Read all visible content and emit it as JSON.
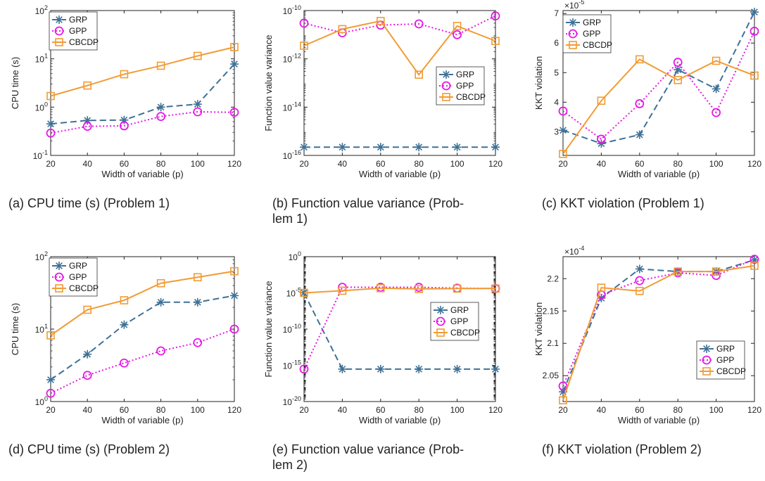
{
  "figure": {
    "colors": {
      "GRP": "#3f7196",
      "GPP": "#e619e6",
      "CBCDP": "#f29b33"
    },
    "markers": {
      "GRP": "asterisk",
      "GPP": "circle",
      "CBCDP": "square"
    }
  },
  "chart_data": [
    {
      "id": "a",
      "type": "line",
      "caption_lines": [
        "(a)  CPU time (s) (Problem 1)"
      ],
      "xlabel": "Width of variable (p)",
      "ylabel": "CPU time (s)",
      "x": [
        20,
        40,
        60,
        80,
        100,
        120
      ],
      "xlim": [
        20,
        120
      ],
      "yscale": "log",
      "ylim": [
        0.1,
        100
      ],
      "yticks": [
        0.1,
        1,
        10,
        100
      ],
      "ytick_labels": [
        {
          "base": "10",
          "exp": "-1"
        },
        {
          "base": "10",
          "exp": "0"
        },
        {
          "base": "10",
          "exp": "1"
        },
        {
          "base": "10",
          "exp": "2"
        }
      ],
      "legend": "top-left",
      "series": [
        {
          "name": "GRP",
          "values": [
            0.45,
            0.53,
            0.54,
            1.0,
            1.15,
            7.8
          ]
        },
        {
          "name": "GPP",
          "values": [
            0.29,
            0.4,
            0.41,
            0.64,
            0.8,
            0.78
          ]
        },
        {
          "name": "CBCDP",
          "values": [
            1.7,
            2.8,
            4.8,
            7.2,
            11.5,
            17.5
          ]
        }
      ]
    },
    {
      "id": "b",
      "type": "line",
      "caption_lines": [
        "(b)  Function value variance (Prob-",
        "lem 1)"
      ],
      "xlabel": "Width of variable (p)",
      "ylabel": "Function value variance",
      "x": [
        20,
        40,
        60,
        80,
        100,
        120
      ],
      "xlim": [
        20,
        120
      ],
      "yscale": "log",
      "ylim": [
        1e-16,
        1e-10
      ],
      "yticks": [
        1e-16,
        1e-14,
        1e-12,
        1e-10
      ],
      "ytick_labels": [
        {
          "base": "10",
          "exp": "-16"
        },
        {
          "base": "10",
          "exp": "-14"
        },
        {
          "base": "10",
          "exp": "-12"
        },
        {
          "base": "10",
          "exp": "-10"
        }
      ],
      "legend": "center-right",
      "series": [
        {
          "name": "GRP",
          "values": [
            2.2e-16,
            2.2e-16,
            2.2e-16,
            2.2e-16,
            2.2e-16,
            2.2e-16
          ]
        },
        {
          "name": "GPP",
          "values": [
            3e-11,
            1.2e-11,
            2.5e-11,
            2.8e-11,
            1e-11,
            6e-11
          ]
        },
        {
          "name": "CBCDP",
          "values": [
            3.5e-12,
            1.7e-11,
            3.7e-11,
            2.2e-13,
            2.3e-11,
            5.5e-12
          ]
        }
      ]
    },
    {
      "id": "c",
      "type": "line",
      "caption_lines": [
        "(c)  KKT violation (Problem 1)"
      ],
      "xlabel": "Width of variable (p)",
      "ylabel": "KKT violation",
      "x": [
        20,
        40,
        60,
        80,
        100,
        120
      ],
      "xlim": [
        20,
        120
      ],
      "yscale": "linear",
      "ylim": [
        2.2,
        7.1
      ],
      "yticks": [
        3,
        4,
        5,
        6,
        7
      ],
      "ytick_labels": [
        "3",
        "4",
        "5",
        "6",
        "7"
      ],
      "scale_note": {
        "base": "×10",
        "exp": "-5"
      },
      "legend": "top-left",
      "series": [
        {
          "name": "GRP",
          "values": [
            3.05,
            2.6,
            2.9,
            5.1,
            4.45,
            7.05
          ]
        },
        {
          "name": "GPP",
          "values": [
            3.7,
            2.75,
            3.95,
            5.35,
            3.65,
            6.4
          ]
        },
        {
          "name": "CBCDP",
          "values": [
            2.25,
            4.05,
            5.45,
            4.75,
            5.4,
            4.9
          ]
        }
      ]
    },
    {
      "id": "d",
      "type": "line",
      "caption_lines": [
        "(d)  CPU time (s) (Problem 2)"
      ],
      "xlabel": "Width of variable (p)",
      "ylabel": "CPU time (s)",
      "x": [
        20,
        40,
        60,
        80,
        100,
        120
      ],
      "xlim": [
        20,
        120
      ],
      "yscale": "log",
      "ylim": [
        1,
        100
      ],
      "yticks": [
        1,
        10,
        100
      ],
      "ytick_labels": [
        {
          "base": "10",
          "exp": "0"
        },
        {
          "base": "10",
          "exp": "1"
        },
        {
          "base": "10",
          "exp": "2"
        }
      ],
      "legend": "top-left",
      "series": [
        {
          "name": "GRP",
          "values": [
            2.0,
            4.5,
            11.5,
            23.5,
            23.5,
            29
          ]
        },
        {
          "name": "GPP",
          "values": [
            1.3,
            2.3,
            3.4,
            5.0,
            6.5,
            10
          ]
        },
        {
          "name": "CBCDP",
          "values": [
            8.2,
            18.5,
            25,
            43,
            52,
            63
          ]
        }
      ]
    },
    {
      "id": "e",
      "type": "line",
      "caption_lines": [
        "(e)  Function value variance (Prob-",
        "lem 2)"
      ],
      "xlabel": "Width of variable (p)",
      "ylabel": "Function value variance",
      "x": [
        20,
        40,
        60,
        80,
        100,
        120
      ],
      "xlim": [
        20,
        120
      ],
      "yscale": "log",
      "ylim": [
        1e-20,
        1
      ],
      "yticks": [
        1e-20,
        1e-15,
        1e-10,
        1e-05,
        1
      ],
      "ytick_labels": [
        {
          "base": "10",
          "exp": "-20"
        },
        {
          "base": "10",
          "exp": "-15"
        },
        {
          "base": "10",
          "exp": "-10"
        },
        {
          "base": "10",
          "exp": "-5"
        },
        {
          "base": "10",
          "exp": "0"
        }
      ],
      "legend": "center-right",
      "series": [
        {
          "name": "GRP",
          "values": [
            1e-05,
            3e-16,
            3e-16,
            3e-16,
            3e-16,
            3e-16
          ]
        },
        {
          "name": "GPP",
          "values": [
            3e-16,
            6e-05,
            6e-05,
            6e-05,
            4.5e-05,
            4e-05
          ]
        },
        {
          "name": "CBCDP",
          "values": [
            1e-05,
            2e-05,
            4.5e-05,
            3.5e-05,
            4e-05,
            4e-05
          ]
        }
      ]
    },
    {
      "id": "f",
      "type": "line",
      "caption_lines": [
        "(f)  KKT violation (Problem 2)"
      ],
      "xlabel": "Width of variable (p)",
      "ylabel": "KKT violation",
      "x": [
        20,
        40,
        60,
        80,
        100,
        120
      ],
      "xlim": [
        20,
        120
      ],
      "yscale": "linear",
      "ylim": [
        2.01,
        2.234
      ],
      "yticks": [
        2.05,
        2.1,
        2.15,
        2.2
      ],
      "ytick_labels": [
        "2.05",
        "2.1",
        "2.15",
        "2.2"
      ],
      "scale_note": {
        "base": "×10",
        "exp": "-4"
      },
      "legend": "center-right",
      "series": [
        {
          "name": "GRP",
          "values": [
            2.025,
            2.17,
            2.215,
            2.211,
            2.211,
            2.229
          ]
        },
        {
          "name": "GPP",
          "values": [
            2.034,
            2.175,
            2.197,
            2.209,
            2.205,
            2.23
          ]
        },
        {
          "name": "CBCDP",
          "values": [
            2.012,
            2.186,
            2.181,
            2.211,
            2.211,
            2.22
          ]
        }
      ]
    }
  ]
}
